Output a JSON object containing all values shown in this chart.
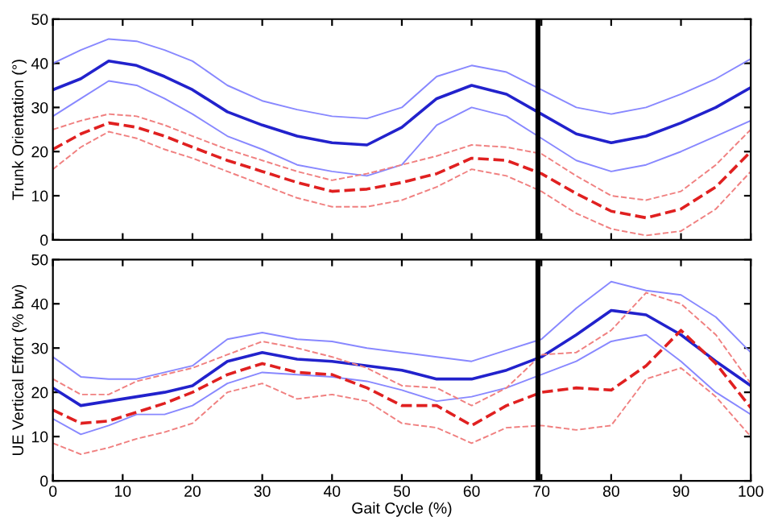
{
  "chart_data": [
    {
      "type": "line",
      "ylabel": "Trunk Orientation (°)",
      "x": [
        0,
        4,
        8,
        12,
        16,
        20,
        25,
        30,
        35,
        40,
        45,
        50,
        55,
        60,
        65,
        70,
        75,
        80,
        85,
        90,
        95,
        100
      ],
      "xlim": [
        0,
        100
      ],
      "xticks": [
        0,
        10,
        20,
        30,
        40,
        50,
        60,
        70,
        80,
        90,
        100
      ],
      "ylim": [
        0,
        50
      ],
      "yticks": [
        0,
        10,
        20,
        30,
        40,
        50
      ],
      "tick_labels": "y",
      "grid": false,
      "marker": "none",
      "series": [
        {
          "color": "#2222cc",
          "line_style": "solid",
          "values": [
            34,
            36.5,
            40.5,
            39.5,
            37,
            34,
            29,
            26,
            23.5,
            22,
            21.5,
            25.5,
            32,
            35,
            33,
            28.5,
            24,
            22,
            23.5,
            26.5,
            30,
            34.5
          ]
        },
        {
          "color": "#8888ff",
          "line_style": "solid",
          "values": [
            40,
            43,
            45.5,
            45,
            43,
            40.5,
            35,
            31.5,
            29.5,
            28,
            27.5,
            30,
            37,
            39.5,
            38,
            34,
            30,
            28.5,
            30,
            33,
            36.5,
            41
          ]
        },
        {
          "color": "#8888ff",
          "line_style": "solid",
          "values": [
            28,
            32,
            36,
            35,
            32,
            28.5,
            23.5,
            20.5,
            17,
            15.5,
            14.5,
            17,
            26,
            30,
            28,
            23,
            18,
            15.5,
            17,
            20,
            23.5,
            27
          ]
        },
        {
          "color": "#e02020",
          "line_style": "dashed",
          "values": [
            20.5,
            24,
            26.5,
            25.5,
            23.5,
            21,
            18,
            15.5,
            13,
            11,
            11.5,
            13,
            15,
            18.5,
            18,
            15,
            10.5,
            6.5,
            5,
            7,
            12,
            20
          ]
        },
        {
          "color": "#f08080",
          "line_style": "dashed",
          "values": [
            25,
            27,
            28.5,
            28,
            26,
            23.5,
            20.5,
            18,
            15.5,
            13.5,
            15,
            17,
            19,
            21.5,
            21,
            19.5,
            14.5,
            10,
            9,
            11,
            17,
            25
          ]
        },
        {
          "color": "#f08080",
          "line_style": "dashed",
          "values": [
            16,
            21,
            24.5,
            23,
            20.5,
            18.5,
            15.5,
            12.5,
            9.5,
            7.5,
            7.5,
            9,
            12,
            16,
            14.5,
            11,
            6,
            2.5,
            1,
            2,
            7,
            15.5
          ]
        }
      ],
      "ref_lines": [
        {
          "axis": "x",
          "value": 69.5,
          "color": "#000000"
        }
      ]
    },
    {
      "type": "line",
      "xlabel": "Gait Cycle (%)",
      "ylabel": "UE Vertical Effort (% bw)",
      "x": [
        0,
        4,
        8,
        12,
        16,
        20,
        25,
        30,
        35,
        40,
        45,
        50,
        55,
        60,
        65,
        70,
        75,
        80,
        85,
        90,
        95,
        100
      ],
      "xlim": [
        0,
        100
      ],
      "xticks": [
        0,
        10,
        20,
        30,
        40,
        50,
        60,
        70,
        80,
        90,
        100
      ],
      "ylim": [
        0,
        50
      ],
      "yticks": [
        0,
        10,
        20,
        30,
        40,
        50
      ],
      "grid": false,
      "marker": "none",
      "series": [
        {
          "color": "#2222cc",
          "line_style": "solid",
          "values": [
            21,
            17,
            18,
            19,
            20,
            21.5,
            27,
            29,
            27.5,
            27,
            26,
            25,
            23,
            23,
            25,
            28,
            33,
            38.5,
            37.5,
            33,
            27,
            21.5
          ]
        },
        {
          "color": "#8888ff",
          "line_style": "solid",
          "values": [
            28,
            23.5,
            23,
            23,
            24.5,
            26,
            32,
            33.5,
            32,
            31.5,
            30,
            29,
            28,
            27,
            29.5,
            32,
            39,
            45,
            43,
            42,
            37,
            29
          ]
        },
        {
          "color": "#8888ff",
          "line_style": "solid",
          "values": [
            14,
            10.5,
            12.5,
            15,
            15,
            17,
            22,
            24.5,
            24,
            23.5,
            22.5,
            20.5,
            18,
            19,
            21,
            24,
            27,
            31.5,
            33,
            27,
            20,
            15
          ]
        },
        {
          "color": "#e02020",
          "line_style": "dashed",
          "values": [
            16,
            13,
            13.5,
            15.5,
            17.5,
            20,
            24,
            26.5,
            24.5,
            24,
            21,
            17,
            17,
            12.5,
            17,
            20,
            21,
            20.5,
            26,
            34,
            26.5,
            16.5
          ]
        },
        {
          "color": "#f08080",
          "line_style": "dashed",
          "values": [
            23,
            19.5,
            19.5,
            22.5,
            24,
            25.5,
            28.5,
            31.5,
            30,
            28,
            25.5,
            21.5,
            21,
            17,
            21,
            28.5,
            29,
            34,
            42.5,
            40,
            33,
            22
          ]
        },
        {
          "color": "#f08080",
          "line_style": "dashed",
          "values": [
            8.5,
            6,
            7.5,
            9.5,
            11,
            13,
            20,
            22,
            18.5,
            19.5,
            18,
            13,
            12,
            8.5,
            12,
            12.5,
            11.5,
            12.5,
            23,
            25.5,
            19,
            10
          ]
        }
      ],
      "ref_lines": [
        {
          "axis": "x",
          "value": 69.5,
          "color": "#000000"
        }
      ]
    }
  ]
}
